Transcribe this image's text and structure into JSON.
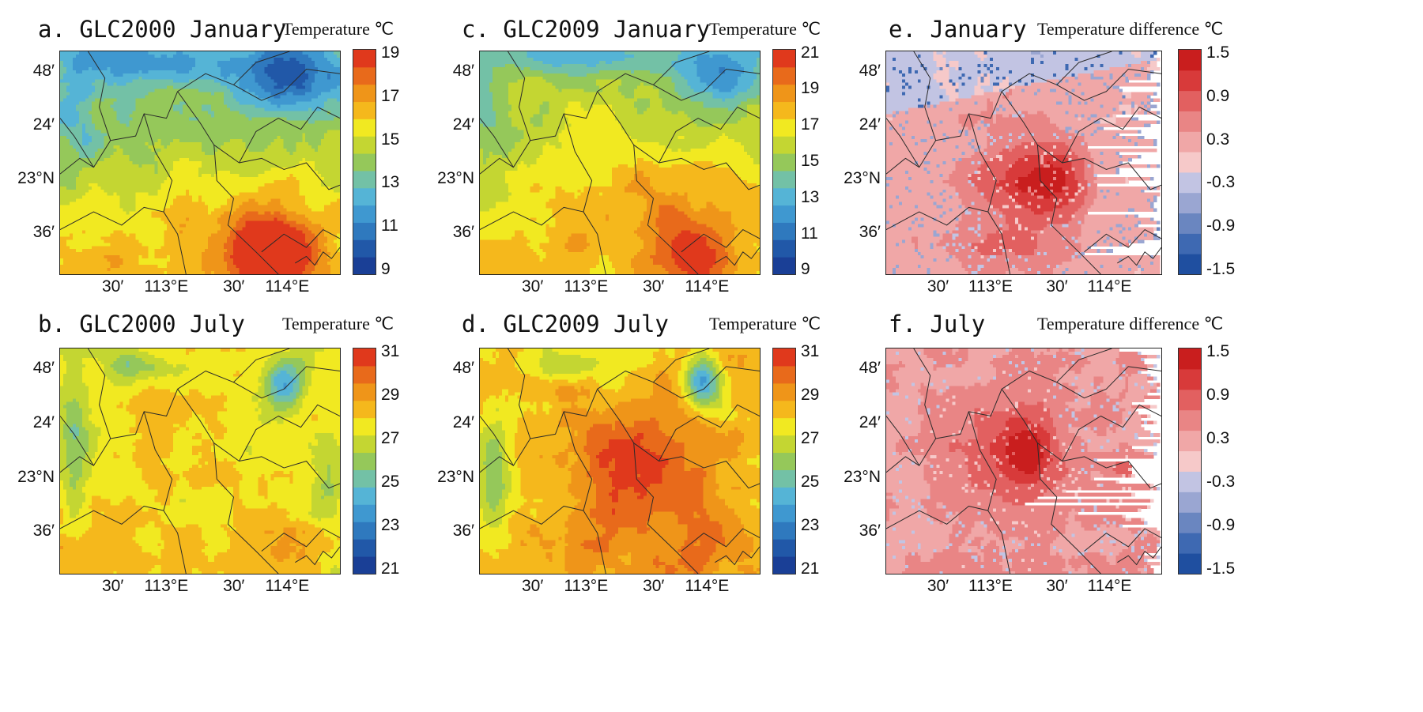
{
  "panels": [
    {
      "id": "a",
      "title": "a. GLC2000 January",
      "colorbar_title": "Temperature ℃",
      "kind": "jan2000",
      "cb_palette": "temp",
      "cb_labels": [
        "19",
        "17",
        "15",
        "13",
        "11",
        "9"
      ]
    },
    {
      "id": "c",
      "title": "c. GLC2009 January",
      "colorbar_title": "Temperature ℃",
      "kind": "jan2009",
      "cb_palette": "temp",
      "cb_labels": [
        "21",
        "19",
        "17",
        "15",
        "13",
        "11",
        "9"
      ]
    },
    {
      "id": "e",
      "title": "e. January",
      "colorbar_title": "Temperature difference ℃",
      "kind": "diffJan",
      "cb_palette": "diff",
      "cb_labels": [
        "1.5",
        "0.9",
        "0.3",
        "-0.3",
        "-0.9",
        "-1.5"
      ]
    },
    {
      "id": "b",
      "title": "b. GLC2000 July",
      "colorbar_title": "Temperature ℃",
      "kind": "jul2000",
      "cb_palette": "temp",
      "cb_labels": [
        "31",
        "29",
        "27",
        "25",
        "23",
        "21"
      ]
    },
    {
      "id": "d",
      "title": "d. GLC2009 July",
      "colorbar_title": "Temperature ℃",
      "kind": "jul2009",
      "cb_palette": "temp",
      "cb_labels": [
        "31",
        "29",
        "27",
        "25",
        "23",
        "21"
      ]
    },
    {
      "id": "f",
      "title": "f. July",
      "colorbar_title": "Temperature difference ℃",
      "kind": "diffJul",
      "cb_palette": "diff",
      "cb_labels": [
        "1.5",
        "0.9",
        "0.3",
        "-0.3",
        "-0.9",
        "-1.5"
      ]
    }
  ],
  "axes": {
    "y_labels": [
      "48′",
      "24′",
      "23°N",
      "36′"
    ],
    "x_labels": [
      "30′",
      "113°E",
      "30′",
      "114°E"
    ]
  },
  "palettes": {
    "temp": [
      "#1a3f96",
      "#2158a8",
      "#2f79be",
      "#3f98d0",
      "#55b4d6",
      "#73c1a6",
      "#95c85a",
      "#c4d632",
      "#f1e921",
      "#f5b81c",
      "#ef9519",
      "#e86a1b",
      "#e0391c"
    ],
    "diff": [
      "#1f4fa0",
      "#3e69b2",
      "#6a86c0",
      "#9aa6d2",
      "#c2c4e3",
      "#f6c9c9",
      "#f0a7a7",
      "#e98585",
      "#e26060",
      "#d83a3a",
      "#c91e1e"
    ]
  }
}
